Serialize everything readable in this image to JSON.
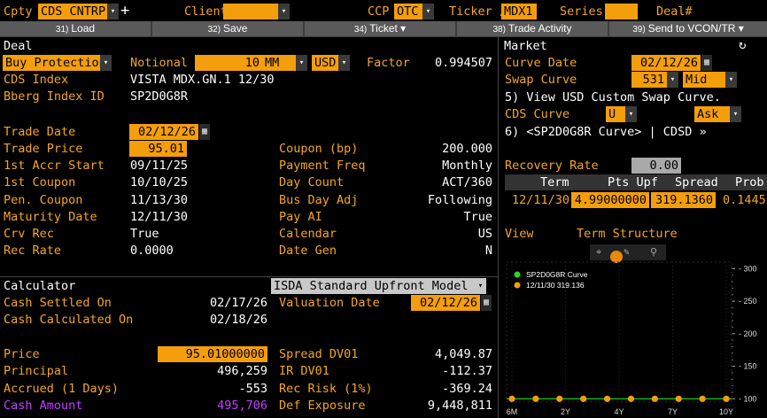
{
  "top": {
    "cpty_label": "Cpty",
    "cpty_value": "CDS CNTRP.",
    "client_label": "Client",
    "client_value": "",
    "ccp_label": "CCP",
    "ccp_value": "OTC",
    "ticker_label": "Ticker /",
    "ticker_value": "MDX1",
    "series_label": "Series",
    "series_value": "",
    "deal_label": "Deal#"
  },
  "buttons": [
    {
      "num": "31)",
      "label": "Load"
    },
    {
      "num": "32)",
      "label": "Save"
    },
    {
      "num": "34)",
      "label": "Ticket"
    },
    {
      "num": "38)",
      "label": "Trade Activity"
    },
    {
      "num": "39)",
      "label": "Send to VCON/TR"
    }
  ],
  "deal": {
    "header": "Deal",
    "side": "Buy Protection",
    "notional_label": "Notional",
    "notional_value": "10",
    "notional_unit": "MM",
    "currency": "USD",
    "factor_label": "Factor",
    "factor_value": "0.994507",
    "cds_index_label": "CDS Index",
    "cds_index_value": "VISTA MDX.GN.1 12/30",
    "bberg_label": "Bberg Index ID",
    "bberg_value": "SP2D0G8R",
    "trade_date_label": "Trade Date",
    "trade_date_value": "02/12/26",
    "trade_price_label": "Trade Price",
    "trade_price_value": "95.01",
    "first_accr_label": "1st Accr Start",
    "first_accr_value": "09/11/25",
    "first_coupon_label": "1st Coupon",
    "first_coupon_value": "10/10/25",
    "pen_coupon_label": "Pen. Coupon",
    "pen_coupon_value": "11/13/30",
    "maturity_label": "Maturity Date",
    "maturity_value": "12/11/30",
    "crv_rec_label": "Crv Rec",
    "crv_rec_value": "True",
    "rec_rate_label": "Rec Rate",
    "rec_rate_value": "0.0000",
    "coupon_label": "Coupon (bp)",
    "coupon_value": "200.000",
    "payment_freq_label": "Payment Freq",
    "payment_freq_value": "Monthly",
    "day_count_label": "Day Count",
    "day_count_value": "ACT/360",
    "bus_day_label": "Bus Day Adj",
    "bus_day_value": "Following",
    "pay_ai_label": "Pay AI",
    "pay_ai_value": "True",
    "calendar_label": "Calendar",
    "calendar_value": "US",
    "date_gen_label": "Date Gen",
    "date_gen_value": "N"
  },
  "calculator": {
    "header": "Calculator",
    "model": "ISDA Standard Upfront Model (I)",
    "cash_settled_label": "Cash Settled On",
    "cash_settled_value": "02/17/26",
    "cash_calc_label": "Cash Calculated On",
    "cash_calc_value": "02/18/26",
    "valuation_label": "Valuation Date",
    "valuation_value": "02/12/26",
    "price_label": "Price",
    "price_value": "95.01000000",
    "principal_label": "Principal",
    "principal_value": "496,259",
    "accrued_label": "Accrued (1 Days)",
    "accrued_value": "-553",
    "cash_amount_label": "Cash Amount",
    "cash_amount_value": "495,706",
    "spread_dv01_label": "Spread DV01",
    "spread_dv01_value": "4,049.87",
    "ir_dv01_label": "IR DV01",
    "ir_dv01_value": "-112.37",
    "rec_risk_label": "Rec Risk (1%)",
    "rec_risk_value": "-369.24",
    "def_exposure_label": "Def Exposure",
    "def_exposure_value": "9,448,811"
  },
  "market": {
    "header": "Market",
    "curve_date_label": "Curve Date",
    "curve_date_value": "02/12/26",
    "swap_curve_label": "Swap Curve",
    "swap_curve_value": "531",
    "swap_curve_side": "Mid",
    "view_swap_text": "5) View USD Custom Swap Curve.",
    "cds_curve_label": "CDS Curve",
    "cds_curve_value": "U",
    "cds_curve_side": "Ask",
    "cdsd_text": "6) <SP2D0G8R Curve> | CDSD »",
    "recovery_label": "Recovery Rate",
    "recovery_value": "0.00",
    "table_headers": [
      "Term",
      "Pts Upf",
      "Spread",
      "Prob"
    ],
    "table_row": {
      "term": "12/11/30",
      "pts_upf": "4.99000000",
      "spread": "319.1360",
      "prob": "0.1445"
    },
    "view_label": "View",
    "term_structure_label": "Term Structure"
  },
  "chart_data": {
    "type": "line",
    "legend": [
      {
        "name": "SP2D0G8R Curve",
        "color": "#22dd22"
      },
      {
        "name": "12/11/30 319.136",
        "color": "#f59e0b"
      }
    ],
    "x_ticks": [
      "6M",
      "2Y",
      "4Y",
      "7Y",
      "10Y"
    ],
    "y_ticks": [
      100,
      150,
      200,
      250,
      300
    ],
    "ylim": [
      95,
      310
    ],
    "series": [
      {
        "name": "SP2D0G8R Curve",
        "color": "#22dd22",
        "y": 100
      },
      {
        "name": "12/11/30 319.136",
        "color": "#f59e0b",
        "values": [
          100,
          100,
          100,
          100,
          100,
          100,
          100,
          100,
          100,
          100
        ]
      }
    ]
  },
  "colors": {
    "accent": "#f59e0b",
    "label": "#f5a623",
    "highlight": "#c040ff"
  }
}
